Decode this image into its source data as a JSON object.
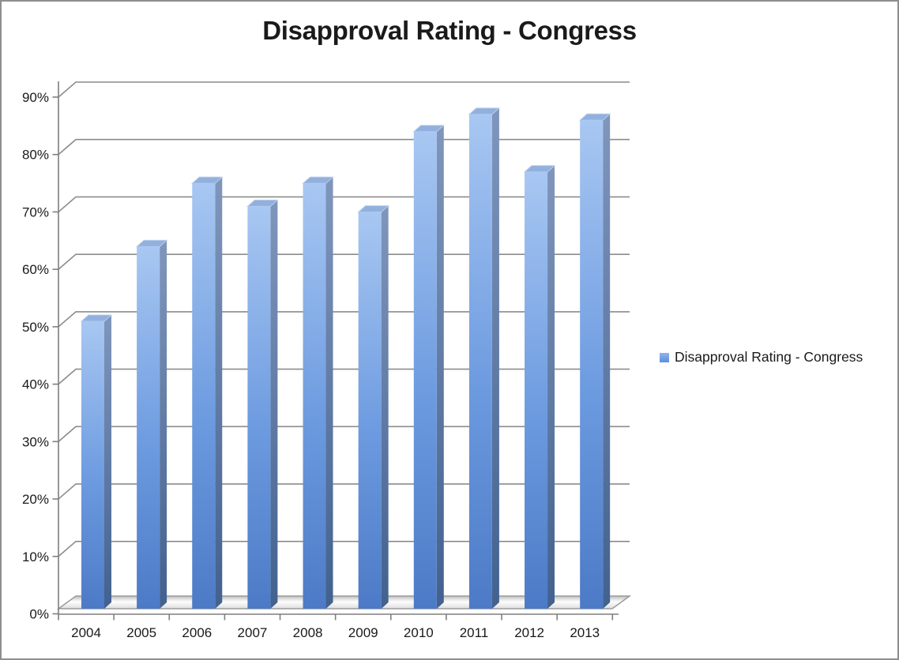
{
  "colors": {
    "background": "#FFFFFF",
    "frame_border": "#8E8E8E",
    "text": "#1A1A1A",
    "gridline": "#8C8C8C",
    "axis": "#7F7F7F",
    "bar_front_top": "#A8C7F2",
    "bar_front_mid": "#6D9BE0",
    "bar_front_bottom": "#4C7AC6",
    "bar_side_top": "#8096BC",
    "bar_side_bottom": "#42618E",
    "bar_top_face": "#92B0DE",
    "bar_top_edge": "#B9CDEC",
    "floor_back": "#BFBFBF",
    "floor_mid": "#FDFDFD",
    "floor_front": "#DEDEDE",
    "legend_marker": "#6F9FE9"
  },
  "chart_data": {
    "type": "bar",
    "style": "3d-column",
    "title": "Disapproval Rating - Congress",
    "categories": [
      "2004",
      "2005",
      "2006",
      "2007",
      "2008",
      "2009",
      "2010",
      "2011",
      "2012",
      "2013"
    ],
    "series": [
      {
        "name": "Disapproval Rating - Congress",
        "values": [
          50,
          63,
          74,
          70,
          74,
          69,
          83,
          86,
          76,
          85
        ]
      }
    ],
    "xlabel": "",
    "ylabel": "",
    "y_axis": {
      "min": 0,
      "max": 90,
      "step": 10,
      "unit": "%",
      "tick_labels": [
        "0%",
        "10%",
        "20%",
        "30%",
        "40%",
        "50%",
        "60%",
        "70%",
        "80%",
        "90%"
      ]
    },
    "grid": true,
    "legend_position": "right"
  }
}
